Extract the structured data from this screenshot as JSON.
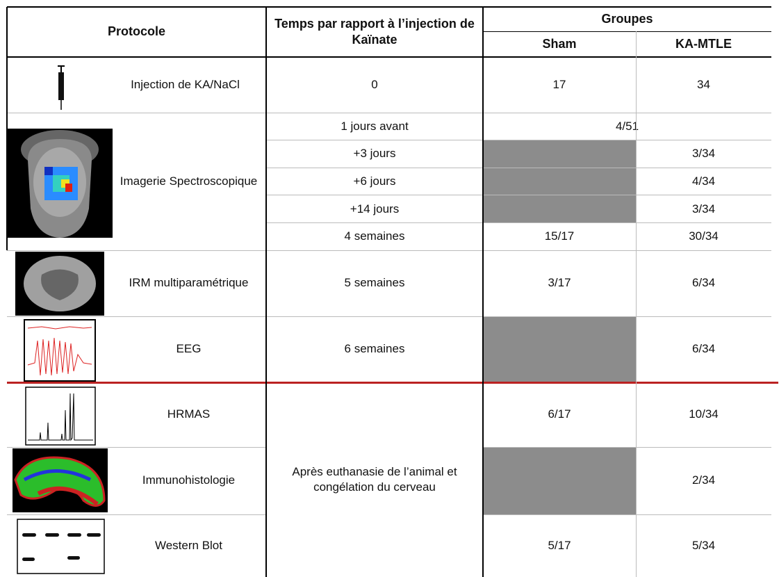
{
  "header": {
    "protocol": "Protocole",
    "time": "Temps par rapport à l’injection de Kaïnate",
    "groups": "Groupes",
    "sham": "Sham",
    "ka": "KA-MTLE"
  },
  "sections": [
    {
      "protocol": "Injection de KA/NaCl",
      "rows": [
        {
          "time": "0",
          "sham": "17",
          "ka": "34"
        }
      ]
    },
    {
      "protocol": "Imagerie Spectroscopique",
      "rows": [
        {
          "time": "1 jours avant",
          "groups": "4/51"
        },
        {
          "time": "+3 jours",
          "ka": "3/34"
        },
        {
          "time": "+6 jours",
          "ka": "4/34"
        },
        {
          "time": "+14 jours",
          "ka": "3/34"
        },
        {
          "time": "4 semaines",
          "sham": "15/17",
          "ka": "30/34"
        }
      ]
    },
    {
      "protocol": "IRM multiparamétrique",
      "rows": [
        {
          "time": "5 semaines",
          "sham": "3/17",
          "ka": "6/34"
        }
      ]
    },
    {
      "protocol": "EEG",
      "rows": [
        {
          "time": "6 semaines",
          "ka": "6/34"
        }
      ]
    },
    {
      "protocol": "HRMAS",
      "rows": [
        {
          "sham": "6/17",
          "ka": "10/34"
        }
      ]
    },
    {
      "protocol": "Immunohistologie",
      "rows": [
        {
          "ka": "2/34"
        }
      ]
    },
    {
      "protocol": "Western Blot",
      "rows": [
        {
          "sham": "5/17",
          "ka": "5/34"
        }
      ]
    }
  ],
  "shared_time": "Après euthanasie de l’animal et congélation du cerveau"
}
